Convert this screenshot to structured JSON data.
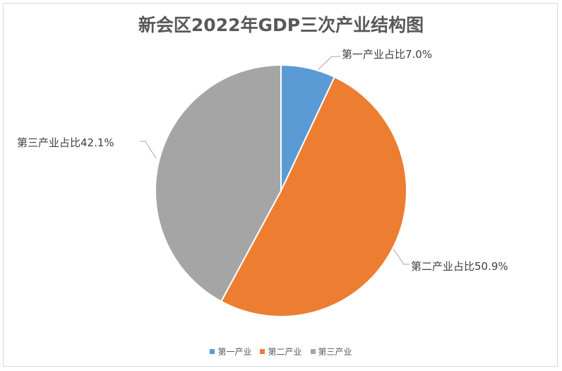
{
  "chart_data": {
    "type": "pie",
    "title": "新会区2022年GDP三次产业结构图",
    "categories": [
      "第一产业",
      "第二产业",
      "第三产业"
    ],
    "values": [
      7.0,
      50.9,
      42.1
    ],
    "data_labels": [
      "第一产业占比7.0%",
      "第二产业占比50.9%",
      "第三产业占比42.1%"
    ],
    "colors": [
      "#5b9bd5",
      "#ed7d31",
      "#a5a5a5"
    ],
    "legend_position": "bottom",
    "start_angle": "12 o'clock, clockwise"
  }
}
